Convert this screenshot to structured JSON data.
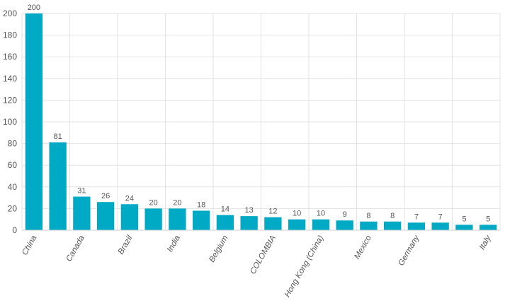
{
  "chart_data": {
    "type": "bar",
    "categories": [
      "China",
      "",
      "Canada",
      "",
      "Brazil",
      "",
      "India",
      "",
      "Belgium",
      "",
      "COLOMBIA",
      "",
      "Hong Kong (China)",
      "",
      "Mexico",
      "",
      "Germany",
      "",
      "",
      "Italy"
    ],
    "values": [
      200,
      81,
      31,
      26,
      24,
      20,
      20,
      18,
      14,
      13,
      12,
      10,
      10,
      9,
      8,
      8,
      7,
      7,
      5,
      5
    ],
    "data_labels": [
      "200",
      "81",
      "31",
      "26",
      "24",
      "20",
      "20",
      "18",
      "14",
      "13",
      "12",
      "10",
      "10",
      "9",
      "8",
      "8",
      "7",
      "7",
      "5",
      "5"
    ],
    "y_ticks": [
      0,
      20,
      40,
      60,
      80,
      100,
      120,
      140,
      160,
      180,
      200
    ],
    "ylim": [
      0,
      200
    ],
    "grid": true,
    "bar_color": "#00a9c4",
    "title": "",
    "xlabel": "",
    "ylabel": ""
  }
}
